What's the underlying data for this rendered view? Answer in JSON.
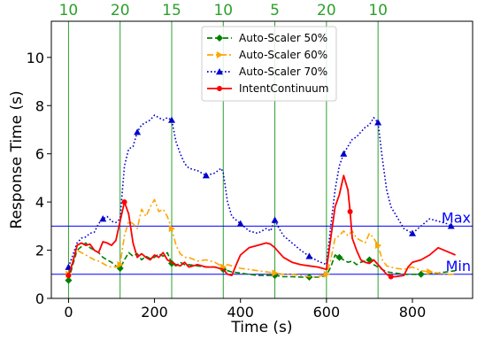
{
  "chart_data": {
    "type": "line",
    "xlabel": "Time (s)",
    "ylabel": "Response Time (s)",
    "xlim": [
      -40,
      940
    ],
    "ylim": [
      0,
      11.5
    ],
    "x_ticks": [
      0,
      200,
      400,
      600,
      800
    ],
    "y_ticks": [
      0,
      2,
      4,
      6,
      8,
      10
    ],
    "grid": false,
    "legend_position": "top-center",
    "phase_boundaries": [
      0,
      120,
      240,
      360,
      480,
      600,
      720
    ],
    "phase_line_color": "#2ca02c",
    "phase_labels": [
      {
        "x": 0,
        "text": "10"
      },
      {
        "x": 120,
        "text": "20"
      },
      {
        "x": 240,
        "text": "15"
      },
      {
        "x": 360,
        "text": "10"
      },
      {
        "x": 480,
        "text": "5"
      },
      {
        "x": 600,
        "text": "20"
      },
      {
        "x": 720,
        "text": "10"
      }
    ],
    "horizontal_lines": [
      {
        "y": 3,
        "label": "Max",
        "color": "#0000ff"
      },
      {
        "y": 1,
        "label": "Min",
        "color": "#0000ff"
      }
    ],
    "series": [
      {
        "name": "Auto-Scaler 50%",
        "color": "#008000",
        "dash": "dashed",
        "marker": "diamond",
        "marker_x": [
          0,
          120,
          240,
          360,
          480,
          560,
          630,
          700,
          820
        ],
        "points": [
          [
            0,
            0.75
          ],
          [
            10,
            1.4
          ],
          [
            20,
            2.0
          ],
          [
            30,
            2.15
          ],
          [
            40,
            2.3
          ],
          [
            50,
            2.1
          ],
          [
            60,
            2.0
          ],
          [
            70,
            1.9
          ],
          [
            80,
            1.7
          ],
          [
            90,
            1.6
          ],
          [
            100,
            1.5
          ],
          [
            110,
            1.35
          ],
          [
            120,
            1.25
          ],
          [
            130,
            1.6
          ],
          [
            140,
            1.9
          ],
          [
            150,
            1.75
          ],
          [
            160,
            1.85
          ],
          [
            170,
            1.6
          ],
          [
            180,
            1.75
          ],
          [
            190,
            1.65
          ],
          [
            200,
            1.7
          ],
          [
            210,
            1.85
          ],
          [
            220,
            1.75
          ],
          [
            230,
            1.9
          ],
          [
            240,
            1.45
          ],
          [
            250,
            1.35
          ],
          [
            260,
            1.5
          ],
          [
            270,
            1.4
          ],
          [
            280,
            1.4
          ],
          [
            300,
            1.35
          ],
          [
            320,
            1.3
          ],
          [
            340,
            1.3
          ],
          [
            360,
            1.2
          ],
          [
            380,
            1.1
          ],
          [
            400,
            1.05
          ],
          [
            420,
            1.0
          ],
          [
            440,
            0.95
          ],
          [
            460,
            0.95
          ],
          [
            480,
            0.95
          ],
          [
            500,
            0.9
          ],
          [
            520,
            0.9
          ],
          [
            540,
            0.88
          ],
          [
            560,
            0.88
          ],
          [
            580,
            0.88
          ],
          [
            600,
            0.95
          ],
          [
            610,
            1.3
          ],
          [
            620,
            1.8
          ],
          [
            630,
            1.7
          ],
          [
            640,
            1.6
          ],
          [
            650,
            1.5
          ],
          [
            660,
            1.55
          ],
          [
            670,
            1.4
          ],
          [
            680,
            1.5
          ],
          [
            690,
            1.55
          ],
          [
            700,
            1.6
          ],
          [
            710,
            1.4
          ],
          [
            720,
            1.3
          ],
          [
            740,
            1.1
          ],
          [
            760,
            1.05
          ],
          [
            780,
            1.0
          ],
          [
            800,
            1.0
          ],
          [
            820,
            1.0
          ],
          [
            840,
            1.05
          ],
          [
            860,
            1.05
          ],
          [
            880,
            1.1
          ],
          [
            900,
            1.15
          ]
        ]
      },
      {
        "name": "Auto-Scaler 60%",
        "color": "#ffa500",
        "dash": "dashdot",
        "marker": "triangle-right",
        "marker_x": [
          0,
          120,
          240,
          360,
          480,
          600,
          720,
          840
        ],
        "points": [
          [
            0,
            1.0
          ],
          [
            10,
            1.6
          ],
          [
            20,
            2.0
          ],
          [
            30,
            1.9
          ],
          [
            40,
            1.8
          ],
          [
            50,
            1.7
          ],
          [
            60,
            1.6
          ],
          [
            70,
            1.55
          ],
          [
            80,
            1.45
          ],
          [
            90,
            1.35
          ],
          [
            100,
            1.3
          ],
          [
            110,
            1.3
          ],
          [
            120,
            1.4
          ],
          [
            130,
            2.6
          ],
          [
            140,
            3.2
          ],
          [
            150,
            3.1
          ],
          [
            160,
            2.9
          ],
          [
            170,
            3.7
          ],
          [
            180,
            3.4
          ],
          [
            190,
            3.8
          ],
          [
            200,
            4.1
          ],
          [
            210,
            3.6
          ],
          [
            220,
            3.7
          ],
          [
            230,
            3.4
          ],
          [
            240,
            2.9
          ],
          [
            250,
            2.2
          ],
          [
            260,
            1.85
          ],
          [
            270,
            1.7
          ],
          [
            280,
            1.7
          ],
          [
            300,
            1.55
          ],
          [
            320,
            1.6
          ],
          [
            340,
            1.5
          ],
          [
            360,
            1.3
          ],
          [
            370,
            1.4
          ],
          [
            380,
            1.35
          ],
          [
            400,
            1.25
          ],
          [
            420,
            1.2
          ],
          [
            440,
            1.15
          ],
          [
            460,
            1.1
          ],
          [
            480,
            1.05
          ],
          [
            500,
            1.0
          ],
          [
            520,
            1.0
          ],
          [
            540,
            0.95
          ],
          [
            560,
            0.9
          ],
          [
            580,
            0.9
          ],
          [
            600,
            1.0
          ],
          [
            610,
            1.6
          ],
          [
            620,
            2.5
          ],
          [
            630,
            2.6
          ],
          [
            640,
            2.8
          ],
          [
            650,
            2.6
          ],
          [
            660,
            2.8
          ],
          [
            670,
            2.5
          ],
          [
            680,
            2.4
          ],
          [
            690,
            2.3
          ],
          [
            700,
            2.7
          ],
          [
            710,
            2.5
          ],
          [
            720,
            2.2
          ],
          [
            730,
            1.6
          ],
          [
            740,
            1.35
          ],
          [
            760,
            1.25
          ],
          [
            780,
            1.2
          ],
          [
            800,
            1.3
          ],
          [
            820,
            1.15
          ],
          [
            840,
            1.1
          ],
          [
            860,
            1.05
          ],
          [
            880,
            1.0
          ],
          [
            900,
            1.0
          ]
        ]
      },
      {
        "name": "Auto-Scaler 70%",
        "color": "#0000cd",
        "dash": "dotted",
        "marker": "triangle-up",
        "marker_x": [
          0,
          80,
          160,
          240,
          320,
          400,
          480,
          560,
          640,
          720,
          800,
          890
        ],
        "points": [
          [
            0,
            1.3
          ],
          [
            10,
            1.8
          ],
          [
            20,
            2.3
          ],
          [
            30,
            2.5
          ],
          [
            40,
            2.55
          ],
          [
            50,
            2.7
          ],
          [
            60,
            2.75
          ],
          [
            70,
            3.1
          ],
          [
            80,
            3.3
          ],
          [
            90,
            3.4
          ],
          [
            100,
            3.2
          ],
          [
            110,
            3.15
          ],
          [
            120,
            3.3
          ],
          [
            130,
            5.5
          ],
          [
            140,
            6.2
          ],
          [
            150,
            6.3
          ],
          [
            160,
            6.9
          ],
          [
            170,
            7.2
          ],
          [
            180,
            7.3
          ],
          [
            190,
            7.4
          ],
          [
            200,
            7.6
          ],
          [
            210,
            7.5
          ],
          [
            220,
            7.4
          ],
          [
            230,
            7.5
          ],
          [
            240,
            7.4
          ],
          [
            250,
            6.5
          ],
          [
            260,
            6.0
          ],
          [
            270,
            5.6
          ],
          [
            280,
            5.4
          ],
          [
            300,
            5.3
          ],
          [
            320,
            5.1
          ],
          [
            340,
            5.2
          ],
          [
            355,
            5.4
          ],
          [
            360,
            5.2
          ],
          [
            370,
            4.0
          ],
          [
            380,
            3.4
          ],
          [
            400,
            3.1
          ],
          [
            420,
            2.8
          ],
          [
            440,
            2.7
          ],
          [
            460,
            2.9
          ],
          [
            470,
            2.8
          ],
          [
            480,
            3.25
          ],
          [
            490,
            2.9
          ],
          [
            500,
            2.6
          ],
          [
            520,
            2.3
          ],
          [
            540,
            2.0
          ],
          [
            560,
            1.75
          ],
          [
            580,
            1.55
          ],
          [
            600,
            1.4
          ],
          [
            610,
            3.0
          ],
          [
            620,
            4.5
          ],
          [
            630,
            5.5
          ],
          [
            640,
            6.0
          ],
          [
            650,
            6.3
          ],
          [
            660,
            6.6
          ],
          [
            670,
            6.7
          ],
          [
            680,
            6.9
          ],
          [
            690,
            7.1
          ],
          [
            700,
            7.2
          ],
          [
            710,
            7.5
          ],
          [
            720,
            7.3
          ],
          [
            730,
            5.8
          ],
          [
            740,
            4.5
          ],
          [
            750,
            3.8
          ],
          [
            760,
            3.5
          ],
          [
            780,
            2.9
          ],
          [
            800,
            2.7
          ],
          [
            820,
            3.0
          ],
          [
            840,
            3.3
          ],
          [
            860,
            3.2
          ],
          [
            880,
            3.1
          ],
          [
            890,
            3.0
          ]
        ]
      },
      {
        "name": "IntentContinuum",
        "color": "#ff0000",
        "dash": "solid",
        "marker": "circle",
        "marker_x": [
          0,
          130,
          655,
          750
        ],
        "points": [
          [
            0,
            0.95
          ],
          [
            10,
            1.5
          ],
          [
            20,
            2.2
          ],
          [
            30,
            2.3
          ],
          [
            40,
            2.2
          ],
          [
            50,
            2.25
          ],
          [
            60,
            2.0
          ],
          [
            70,
            1.9
          ],
          [
            80,
            2.35
          ],
          [
            90,
            2.3
          ],
          [
            100,
            2.2
          ],
          [
            110,
            2.4
          ],
          [
            120,
            3.2
          ],
          [
            130,
            4.0
          ],
          [
            140,
            3.5
          ],
          [
            150,
            2.3
          ],
          [
            160,
            1.7
          ],
          [
            170,
            1.85
          ],
          [
            180,
            1.7
          ],
          [
            190,
            1.6
          ],
          [
            200,
            1.8
          ],
          [
            210,
            1.7
          ],
          [
            220,
            1.9
          ],
          [
            230,
            1.6
          ],
          [
            240,
            1.5
          ],
          [
            250,
            1.4
          ],
          [
            260,
            1.35
          ],
          [
            270,
            1.5
          ],
          [
            280,
            1.3
          ],
          [
            300,
            1.4
          ],
          [
            320,
            1.3
          ],
          [
            340,
            1.3
          ],
          [
            360,
            1.2
          ],
          [
            370,
            1.0
          ],
          [
            380,
            0.95
          ],
          [
            390,
            1.4
          ],
          [
            400,
            1.8
          ],
          [
            420,
            2.1
          ],
          [
            440,
            2.2
          ],
          [
            460,
            2.3
          ],
          [
            470,
            2.25
          ],
          [
            480,
            2.1
          ],
          [
            490,
            1.9
          ],
          [
            500,
            1.7
          ],
          [
            520,
            1.5
          ],
          [
            540,
            1.4
          ],
          [
            560,
            1.35
          ],
          [
            580,
            1.3
          ],
          [
            600,
            1.2
          ],
          [
            610,
            2.5
          ],
          [
            620,
            3.8
          ],
          [
            630,
            4.3
          ],
          [
            640,
            5.1
          ],
          [
            650,
            4.5
          ],
          [
            655,
            3.6
          ],
          [
            660,
            2.5
          ],
          [
            670,
            2.0
          ],
          [
            680,
            1.6
          ],
          [
            690,
            1.5
          ],
          [
            700,
            1.45
          ],
          [
            710,
            1.6
          ],
          [
            720,
            1.4
          ],
          [
            730,
            1.2
          ],
          [
            740,
            1.0
          ],
          [
            750,
            0.9
          ],
          [
            760,
            0.9
          ],
          [
            780,
            0.95
          ],
          [
            790,
            1.3
          ],
          [
            800,
            1.5
          ],
          [
            820,
            1.6
          ],
          [
            840,
            1.8
          ],
          [
            860,
            2.1
          ],
          [
            880,
            1.95
          ],
          [
            900,
            1.8
          ]
        ]
      }
    ]
  }
}
